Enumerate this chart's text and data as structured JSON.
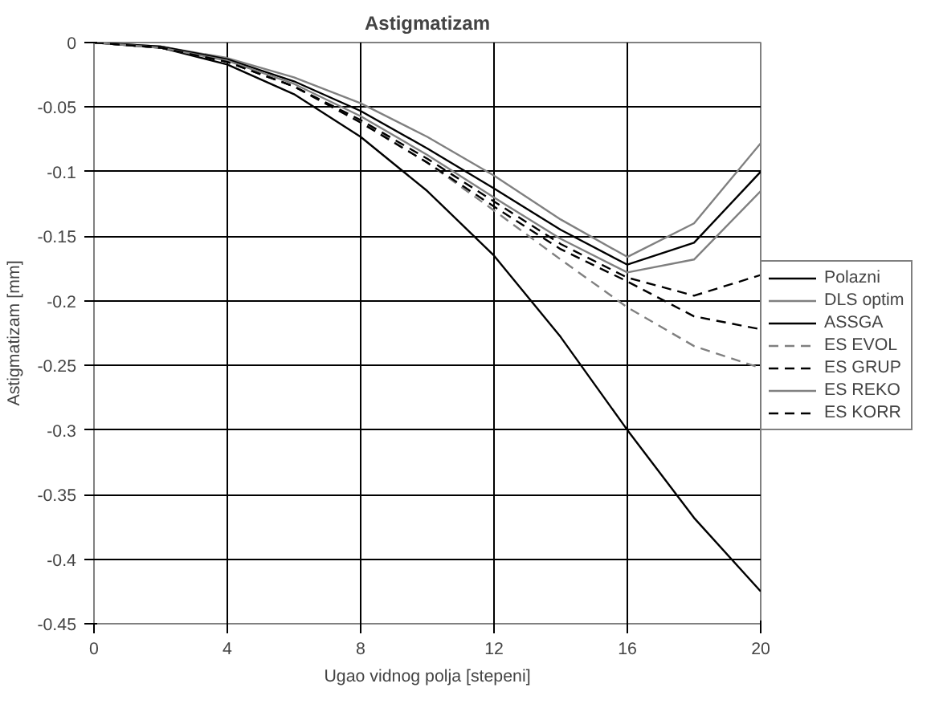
{
  "chart_data": {
    "type": "line",
    "title": "Astigmatizam",
    "xlabel": "Ugao vidnog polja [stepeni]",
    "ylabel": "Astigmatizam [mm]",
    "x": [
      0,
      2,
      4,
      6,
      8,
      10,
      12,
      14,
      16,
      18,
      20
    ],
    "xlim": [
      0,
      20
    ],
    "xticks": [
      0,
      4,
      8,
      12,
      16,
      20
    ],
    "ylim": [
      -0.45,
      0
    ],
    "yticks": [
      -0.45,
      -0.4,
      -0.35,
      -0.3,
      -0.25,
      -0.2,
      -0.15,
      -0.1,
      -0.05,
      0
    ],
    "grid": true,
    "legend": "right",
    "marker": "none",
    "series": [
      {
        "name": "Polazni",
        "color": "#000000",
        "line_style": "solid",
        "values": [
          0,
          -0.004,
          -0.017,
          -0.04,
          -0.073,
          -0.115,
          -0.165,
          -0.228,
          -0.3,
          -0.368,
          -0.425
        ]
      },
      {
        "name": "DLS optim",
        "color": "#808080",
        "line_style": "solid",
        "values": [
          0,
          -0.003,
          -0.012,
          -0.027,
          -0.047,
          -0.073,
          -0.103,
          -0.137,
          -0.166,
          -0.14,
          -0.078
        ]
      },
      {
        "name": "ASSGA",
        "color": "#000000",
        "line_style": "solid",
        "values": [
          0,
          -0.003,
          -0.013,
          -0.03,
          -0.053,
          -0.082,
          -0.113,
          -0.145,
          -0.172,
          -0.155,
          -0.1
        ]
      },
      {
        "name": "ES EVOL",
        "color": "#808080",
        "line_style": "dashed",
        "values": [
          0,
          -0.004,
          -0.015,
          -0.034,
          -0.061,
          -0.093,
          -0.13,
          -0.168,
          -0.205,
          -0.235,
          -0.252
        ]
      },
      {
        "name": "ES GRUP",
        "color": "#000000",
        "line_style": "dashed",
        "values": [
          0,
          -0.004,
          -0.015,
          -0.034,
          -0.06,
          -0.09,
          -0.123,
          -0.156,
          -0.182,
          -0.196,
          -0.18
        ]
      },
      {
        "name": "ES REKO",
        "color": "#808080",
        "line_style": "solid",
        "values": [
          0,
          -0.004,
          -0.014,
          -0.032,
          -0.057,
          -0.087,
          -0.12,
          -0.152,
          -0.178,
          -0.168,
          -0.115
        ]
      },
      {
        "name": "ES KORR",
        "color": "#000000",
        "line_style": "dashed",
        "values": [
          0,
          -0.004,
          -0.015,
          -0.034,
          -0.062,
          -0.093,
          -0.127,
          -0.16,
          -0.185,
          -0.212,
          -0.222
        ]
      }
    ]
  }
}
